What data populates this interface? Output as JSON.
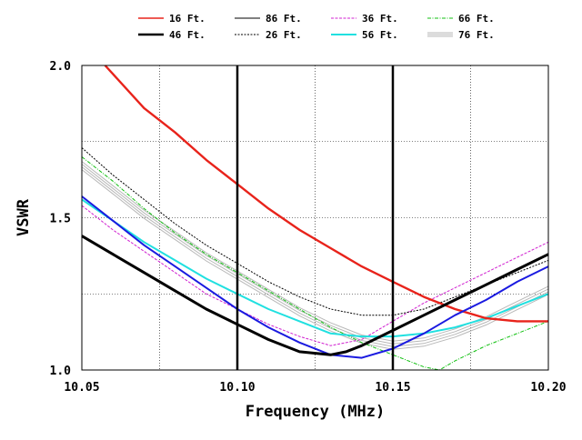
{
  "chart_data": {
    "type": "line",
    "title": "",
    "xlabel": "Frequency (MHz)",
    "ylabel": "VSWR",
    "xlim": [
      10.05,
      10.2
    ],
    "ylim": [
      1.0,
      2.0
    ],
    "x_ticks": [
      "10.05",
      "10.10",
      "10.15",
      "10.20"
    ],
    "y_ticks": [
      "1.0",
      "1.5",
      "2.0"
    ],
    "grid": true,
    "legend_position": "top",
    "markers": [
      10.1,
      10.15
    ],
    "series": [
      {
        "name": "16 Ft.",
        "color": "#e8231b",
        "points": [
          [
            10.0575,
            2.0
          ],
          [
            10.07,
            1.86
          ],
          [
            10.08,
            1.78
          ],
          [
            10.09,
            1.69
          ],
          [
            10.1,
            1.61
          ],
          [
            10.11,
            1.53
          ],
          [
            10.12,
            1.46
          ],
          [
            10.13,
            1.4
          ],
          [
            10.14,
            1.34
          ],
          [
            10.15,
            1.29
          ],
          [
            10.16,
            1.24
          ],
          [
            10.17,
            1.2
          ],
          [
            10.18,
            1.17
          ],
          [
            10.19,
            1.16
          ],
          [
            10.2,
            1.16
          ]
        ]
      },
      {
        "name": "86 Ft.",
        "color": "#000000",
        "points": [
          [
            10.05,
            1.44
          ],
          [
            10.06,
            1.38
          ],
          [
            10.07,
            1.32
          ],
          [
            10.08,
            1.26
          ],
          [
            10.09,
            1.2
          ],
          [
            10.1,
            1.15
          ],
          [
            10.11,
            1.1
          ],
          [
            10.12,
            1.06
          ],
          [
            10.13,
            1.05
          ],
          [
            10.135,
            1.06
          ],
          [
            10.14,
            1.08
          ],
          [
            10.15,
            1.13
          ],
          [
            10.16,
            1.18
          ],
          [
            10.17,
            1.23
          ],
          [
            10.18,
            1.28
          ],
          [
            10.19,
            1.33
          ],
          [
            10.2,
            1.38
          ]
        ]
      },
      {
        "name": "36 Ft.",
        "color": "#d020d0",
        "points": [
          [
            10.05,
            1.54
          ],
          [
            10.06,
            1.46
          ],
          [
            10.07,
            1.39
          ],
          [
            10.08,
            1.32
          ],
          [
            10.09,
            1.25
          ],
          [
            10.1,
            1.2
          ],
          [
            10.11,
            1.15
          ],
          [
            10.12,
            1.11
          ],
          [
            10.13,
            1.08
          ],
          [
            10.14,
            1.1
          ],
          [
            10.15,
            1.16
          ],
          [
            10.16,
            1.22
          ],
          [
            10.17,
            1.27
          ],
          [
            10.18,
            1.32
          ],
          [
            10.19,
            1.37
          ],
          [
            10.2,
            1.42
          ]
        ]
      },
      {
        "name": "66 Ft.",
        "color": "#10c010",
        "points": [
          [
            10.05,
            1.7
          ],
          [
            10.06,
            1.62
          ],
          [
            10.07,
            1.53
          ],
          [
            10.08,
            1.45
          ],
          [
            10.09,
            1.38
          ],
          [
            10.1,
            1.32
          ],
          [
            10.11,
            1.26
          ],
          [
            10.12,
            1.2
          ],
          [
            10.13,
            1.14
          ],
          [
            10.14,
            1.09
          ],
          [
            10.15,
            1.05
          ],
          [
            10.16,
            1.01
          ],
          [
            10.165,
            1.0
          ],
          [
            10.17,
            1.03
          ],
          [
            10.18,
            1.08
          ],
          [
            10.19,
            1.12
          ],
          [
            10.2,
            1.16
          ]
        ]
      },
      {
        "name": "46 Ft.",
        "color": "#000000",
        "points": [
          [
            10.05,
            1.44
          ],
          [
            10.06,
            1.38
          ],
          [
            10.07,
            1.32
          ],
          [
            10.08,
            1.26
          ],
          [
            10.09,
            1.2
          ],
          [
            10.1,
            1.15
          ],
          [
            10.11,
            1.1
          ],
          [
            10.12,
            1.06
          ],
          [
            10.13,
            1.05
          ],
          [
            10.135,
            1.06
          ],
          [
            10.14,
            1.08
          ],
          [
            10.15,
            1.13
          ],
          [
            10.16,
            1.18
          ],
          [
            10.17,
            1.23
          ],
          [
            10.18,
            1.28
          ],
          [
            10.19,
            1.33
          ],
          [
            10.2,
            1.38
          ]
        ]
      },
      {
        "name": "26 Ft.",
        "color": "#000000",
        "points": [
          [
            10.05,
            1.73
          ],
          [
            10.06,
            1.64
          ],
          [
            10.07,
            1.56
          ],
          [
            10.08,
            1.48
          ],
          [
            10.09,
            1.41
          ],
          [
            10.1,
            1.35
          ],
          [
            10.11,
            1.29
          ],
          [
            10.12,
            1.24
          ],
          [
            10.13,
            1.2
          ],
          [
            10.14,
            1.18
          ],
          [
            10.15,
            1.18
          ],
          [
            10.16,
            1.2
          ],
          [
            10.17,
            1.24
          ],
          [
            10.18,
            1.28
          ],
          [
            10.19,
            1.32
          ],
          [
            10.2,
            1.36
          ]
        ]
      },
      {
        "name": "56 Ft.",
        "color": "#20e0e0",
        "points": [
          [
            10.05,
            1.56
          ],
          [
            10.06,
            1.49
          ],
          [
            10.07,
            1.42
          ],
          [
            10.08,
            1.36
          ],
          [
            10.09,
            1.3
          ],
          [
            10.1,
            1.25
          ],
          [
            10.11,
            1.2
          ],
          [
            10.12,
            1.16
          ],
          [
            10.13,
            1.12
          ],
          [
            10.14,
            1.11
          ],
          [
            10.15,
            1.11
          ],
          [
            10.16,
            1.12
          ],
          [
            10.17,
            1.14
          ],
          [
            10.18,
            1.17
          ],
          [
            10.19,
            1.21
          ],
          [
            10.2,
            1.25
          ]
        ]
      },
      {
        "name": "76 Ft.",
        "color": "#b8b8b8",
        "points": [
          [
            10.05,
            1.67
          ],
          [
            10.06,
            1.59
          ],
          [
            10.07,
            1.51
          ],
          [
            10.08,
            1.44
          ],
          [
            10.09,
            1.37
          ],
          [
            10.1,
            1.31
          ],
          [
            10.11,
            1.25
          ],
          [
            10.12,
            1.19
          ],
          [
            10.13,
            1.14
          ],
          [
            10.14,
            1.1
          ],
          [
            10.15,
            1.08
          ],
          [
            10.16,
            1.09
          ],
          [
            10.17,
            1.12
          ],
          [
            10.18,
            1.16
          ],
          [
            10.19,
            1.21
          ],
          [
            10.2,
            1.26
          ]
        ]
      },
      {
        "name": "",
        "color": "#1a1ae0",
        "points": [
          [
            10.05,
            1.57
          ],
          [
            10.06,
            1.49
          ],
          [
            10.07,
            1.41
          ],
          [
            10.08,
            1.34
          ],
          [
            10.09,
            1.27
          ],
          [
            10.1,
            1.2
          ],
          [
            10.11,
            1.14
          ],
          [
            10.12,
            1.09
          ],
          [
            10.13,
            1.05
          ],
          [
            10.14,
            1.04
          ],
          [
            10.15,
            1.07
          ],
          [
            10.16,
            1.12
          ],
          [
            10.17,
            1.18
          ],
          [
            10.18,
            1.23
          ],
          [
            10.19,
            1.29
          ],
          [
            10.2,
            1.34
          ]
        ]
      }
    ]
  }
}
